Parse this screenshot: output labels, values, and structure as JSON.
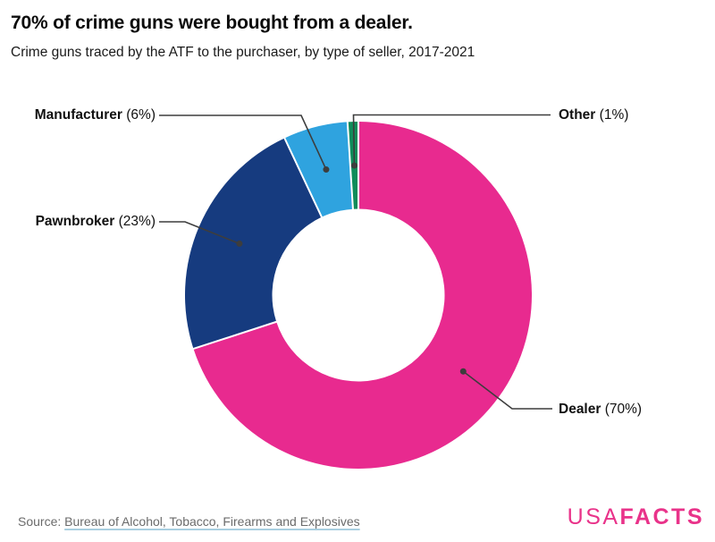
{
  "chart_data": {
    "type": "pie",
    "subtype": "donut",
    "title": "70% of crime guns were bought from a dealer.",
    "subtitle": "Crime guns traced by the ATF to the purchaser, by type of seller, 2017-2021",
    "categories": [
      "Dealer",
      "Pawnbroker",
      "Manufacturer",
      "Other"
    ],
    "values": [
      70,
      23,
      6,
      1
    ],
    "unit": "percent",
    "colors": [
      "#E82A8F",
      "#163B7F",
      "#2FA3DF",
      "#0F8C5A"
    ],
    "segment_labels": [
      {
        "name": "Dealer",
        "pct_label": "(70%)"
      },
      {
        "name": "Pawnbroker",
        "pct_label": "(23%)"
      },
      {
        "name": "Manufacturer",
        "pct_label": "(6%)"
      },
      {
        "name": "Other",
        "pct_label": "(1%)"
      }
    ],
    "start_angle_deg": 0,
    "direction": "clockwise",
    "donut_hole_ratio": 0.5,
    "legend": "none",
    "grid": "off",
    "leader_line_color": "#3D3D3D"
  },
  "source": {
    "prefix": "Source:",
    "link_text": "Bureau of Alcohol, Tobacco, Firearms and Explosives",
    "underline_color": "#A9CFE0"
  },
  "logo": {
    "text_light": "USA",
    "text_bold": "FACTS",
    "color": "#E9338A"
  }
}
